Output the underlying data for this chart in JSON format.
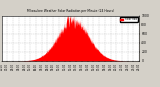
{
  "bg_color": "#d4d0c8",
  "plot_bg_color": "#ffffff",
  "bar_color": "#ff0000",
  "legend_color": "#ff0000",
  "grid_color": "#999999",
  "ylim": [
    0,
    1000
  ],
  "xlim": [
    0,
    1440
  ],
  "yticks": [
    0,
    200,
    400,
    600,
    800,
    1000
  ],
  "num_minutes": 1440,
  "peak_minute": 750,
  "peak_value": 880,
  "spread": 160,
  "noise_scale": 60
}
